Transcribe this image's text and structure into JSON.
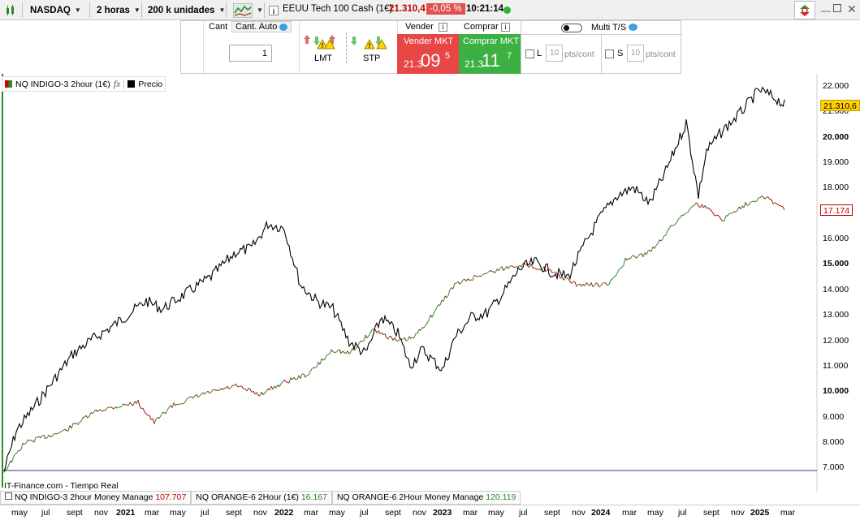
{
  "toolbar": {
    "market": "NASDAQ",
    "timeframe": "2 horas",
    "units": "200 k unidades",
    "instrument": "EEUU Tech 100 Cash (1€)",
    "price": "21.310,4",
    "change": "-0,05 %",
    "time": "10:21:14"
  },
  "order": {
    "cant_label": "Cant",
    "cant_auto_label": "Cant. Auto",
    "quantity": "1",
    "lmt_label": "LMT",
    "stp_label": "STP",
    "vender_label": "Vender",
    "comprar_label": "Comprar",
    "sell_mkt_label": "Vender MKT",
    "buy_mkt_label": "Comprar MKT",
    "sell_price_prefix": "21.3",
    "sell_price_big": "09",
    "sell_price_small": "5",
    "buy_price_prefix": "21.3",
    "buy_price_big": "11",
    "buy_price_small": "7",
    "multi_ts_label": "Multi T/S",
    "l_label": "L",
    "s_label": "S",
    "l_value": "10",
    "s_value": "10",
    "pts_cont": "pts/cont"
  },
  "legend": {
    "series_name": "NQ INDIGO-3 2hour (1€)",
    "fx": "fx",
    "precio": "Precio"
  },
  "chart": {
    "source_text": "IT-Finance.com - Tiempo Real",
    "price_tag_black": "21.310,6",
    "price_tag_red": "17.174",
    "y_labels": [
      "22.000",
      "21.000",
      "20.000",
      "19.000",
      "18.000",
      "17.000",
      "16.000",
      "15.000",
      "14.000",
      "13.000",
      "12.000",
      "11.000",
      "10.000",
      "9.000",
      "8.000",
      "7.000"
    ],
    "x_labels": [
      "may",
      "jul",
      "sept",
      "nov",
      "2021",
      "mar",
      "may",
      "jul",
      "sept",
      "nov",
      "2022",
      "mar",
      "may",
      "jul",
      "sept",
      "nov",
      "2023",
      "mar",
      "may",
      "jul",
      "sept",
      "nov",
      "2024",
      "mar",
      "may",
      "jul",
      "sept",
      "nov",
      "2025",
      "mar"
    ]
  },
  "bottom": {
    "item1_label": "NQ INDIGO-3 2hour Money Manage",
    "item1_value": "107.707",
    "item2_label": "NQ ORANGE-6 2Hour (1€)",
    "item2_value": "16.167",
    "item3_label": "NQ ORANGE-6 2Hour Money Manage",
    "item3_value": "120.119"
  },
  "colors": {
    "sell": "#e84545",
    "buy": "#3cb043",
    "change_bg": "#e05050",
    "price_red": "#c00000",
    "price_tag_yellow": "#ffd000"
  }
}
